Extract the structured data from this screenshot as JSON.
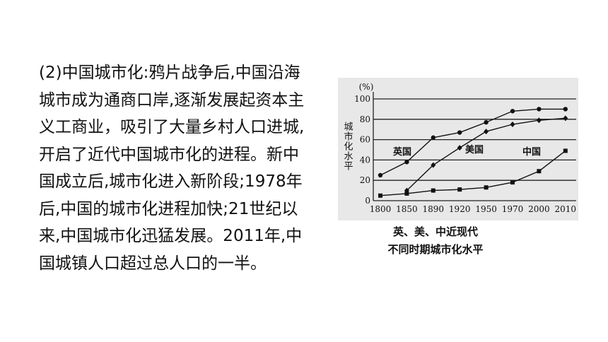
{
  "paragraph": {
    "lines": [
      "(2)中国城市化:鸦片战争后,中国沿海",
      "城市成为通商口岸,逐渐发展起资本主",
      "义工商业，吸引了大量乡村人口进城,",
      "开启了近代中国城市化的进程。新中",
      "国成立后,城市化进入新阶段;1978年",
      "后,中国的城市化进程加快;21世纪以",
      "来,中国城市化迅猛发展。2011年,中",
      "国城镇人口超过总人口的一半。"
    ]
  },
  "chart_data": {
    "type": "line",
    "y_label": "城市化水平",
    "y_unit": "(%)",
    "caption": [
      "英、美、中近现代",
      "不同时期城市化水平"
    ],
    "categories": [
      "1800",
      "1850",
      "1890",
      "1920",
      "1950",
      "1970",
      "2000",
      "2010"
    ],
    "ylim": [
      0,
      100
    ],
    "yticks": [
      0,
      20,
      40,
      60,
      80,
      100
    ],
    "grid": true,
    "series": [
      {
        "name": "英国",
        "color": "#111111",
        "marker": "circle",
        "values": [
          25,
          38,
          62,
          67,
          77,
          88,
          90,
          90
        ]
      },
      {
        "name": "美国",
        "color": "#111111",
        "marker": "diamond",
        "values": [
          null,
          10,
          35,
          52,
          68,
          75,
          79,
          81
        ]
      },
      {
        "name": "中国",
        "color": "#111111",
        "marker": "square",
        "values": [
          5,
          7,
          10,
          11,
          13,
          18,
          29,
          49
        ]
      }
    ]
  }
}
